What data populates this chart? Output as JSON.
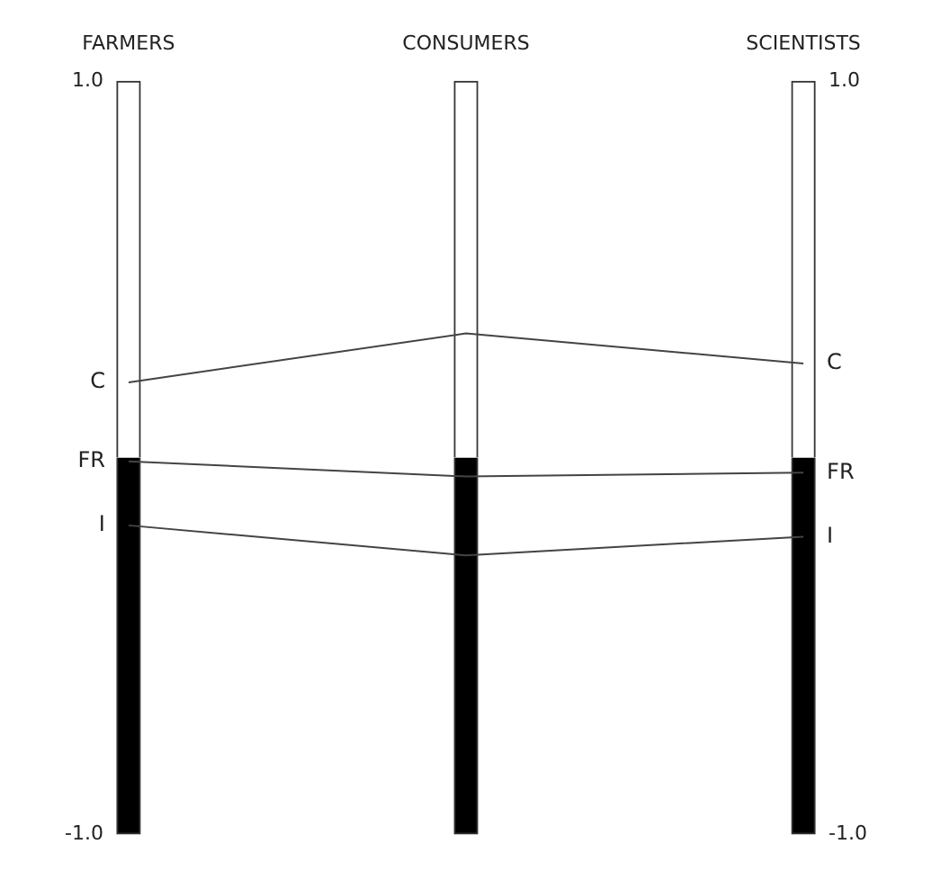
{
  "chart_data": {
    "type": "bar",
    "categories": [
      "FARMERS",
      "CONSUMERS",
      "SCIENTISTS"
    ],
    "stacked": true,
    "grid": false,
    "series": [
      {
        "color": "#ffffff",
        "values": [
          1,
          1,
          1
        ]
      },
      {
        "color": "#000000",
        "values": [
          -1,
          -1,
          -1
        ]
      },
      {
        "type": "line",
        "name": "C",
        "color": "#444444",
        "values": [
          0.2,
          0.33,
          0.25
        ]
      },
      {
        "type": "line",
        "name": "FR",
        "color": "#444444",
        "values": [
          -0.01,
          -0.05,
          -0.04
        ]
      },
      {
        "type": "line",
        "name": "I",
        "color": "#444444",
        "values": [
          -0.18,
          -0.26,
          -0.21
        ]
      }
    ],
    "ylim": [
      -1,
      1
    ],
    "yticks": [
      {
        "value": -1,
        "label": "-1.0"
      },
      {
        "value": 1,
        "label": "1.0"
      }
    ],
    "y2lim": [
      -1,
      1
    ],
    "y2ticks": [
      {
        "value": -1,
        "label": "-1.0"
      },
      {
        "value": 1,
        "label": "1.0"
      }
    ],
    "marker": "none",
    "line_style": "solid"
  }
}
